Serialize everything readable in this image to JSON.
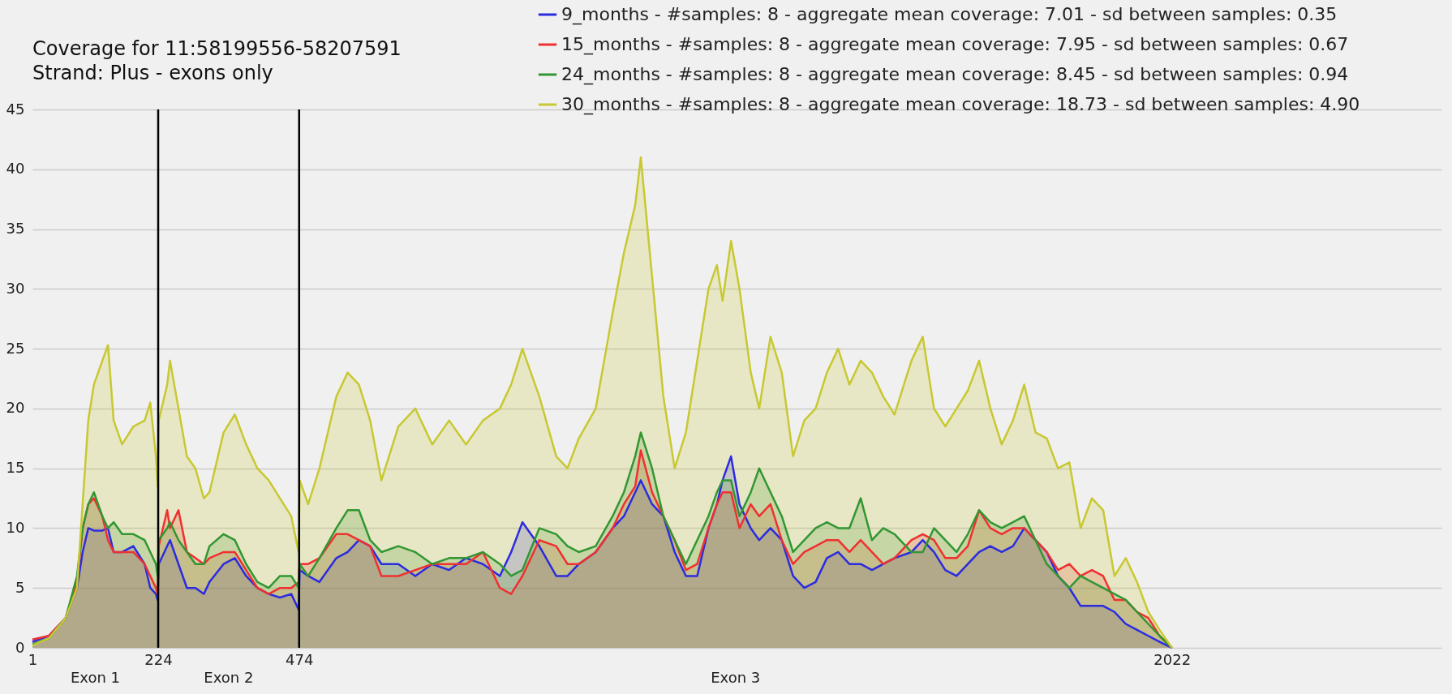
{
  "chart_data": {
    "type": "area",
    "title": "Coverage for 11:58199556-58207591",
    "subtitle": "Strand: Plus - exons only",
    "x": [
      1,
      30,
      60,
      80,
      90,
      100,
      110,
      125,
      135,
      145,
      160,
      180,
      200,
      210,
      220,
      223,
      225,
      240,
      245,
      260,
      275,
      290,
      305,
      315,
      340,
      360,
      380,
      400,
      420,
      440,
      460,
      473,
      475,
      490,
      510,
      540,
      560,
      580,
      600,
      620,
      650,
      680,
      710,
      740,
      770,
      800,
      830,
      850,
      870,
      900,
      930,
      950,
      970,
      1000,
      1030,
      1050,
      1070,
      1080,
      1100,
      1120,
      1140,
      1160,
      1180,
      1200,
      1215,
      1225,
      1240,
      1255,
      1275,
      1290,
      1310,
      1330,
      1350,
      1370,
      1390,
      1410,
      1430,
      1450,
      1470,
      1490,
      1510,
      1530,
      1560,
      1580,
      1600,
      1620,
      1640,
      1660,
      1680,
      1700,
      1720,
      1740,
      1760,
      1780,
      1800,
      1820,
      1840,
      1860,
      1880,
      1900,
      1920,
      1940,
      1960,
      1980,
      2000,
      2022
    ],
    "series": [
      {
        "name": "9_months - #samples: 8 - aggregate mean coverage: 7.01 - sd between samples: 0.35",
        "color": "#2b2be0",
        "values": [
          0.5,
          1,
          2.5,
          5,
          8,
          10,
          9.8,
          9.8,
          10,
          8,
          8,
          8.5,
          7,
          5,
          4.5,
          4,
          7,
          8.5,
          9,
          7,
          5,
          5,
          4.5,
          5.5,
          7,
          7.5,
          6,
          5,
          4.5,
          4.2,
          4.5,
          3.2,
          6.5,
          6,
          5.5,
          7.5,
          8,
          9,
          8.5,
          7,
          7,
          6,
          7,
          6.5,
          7.5,
          7,
          6,
          8,
          10.5,
          8.5,
          6,
          6,
          7,
          8,
          10,
          11,
          13,
          14,
          12,
          11,
          8,
          6,
          6,
          10,
          12,
          14,
          16,
          12,
          10,
          9,
          10,
          9,
          6,
          5,
          5.5,
          7.5,
          8,
          7,
          7,
          6.5,
          7,
          7.5,
          8,
          9,
          8,
          6.5,
          6,
          7,
          8,
          8.5,
          8,
          8.5,
          10,
          9,
          8,
          6,
          5,
          3.5,
          3.5,
          3.5,
          3,
          2,
          1.5,
          1,
          0.5,
          0
        ]
      },
      {
        "name": "15_months - #samples: 8 - aggregate mean coverage: 7.95 - sd between samples: 0.67",
        "color": "#f03030",
        "values": [
          0.7,
          1,
          2.5,
          5.5,
          10,
          12,
          12.5,
          11,
          9,
          8,
          8,
          8,
          7,
          6,
          5,
          4.5,
          8.5,
          11.5,
          10,
          11.5,
          8,
          7.5,
          7,
          7.5,
          8,
          8,
          6.5,
          5,
          4.5,
          5,
          5,
          5.5,
          7,
          7,
          7.5,
          9.5,
          9.5,
          9,
          8.5,
          6,
          6,
          6.5,
          7,
          7,
          7,
          8,
          5,
          4.5,
          6,
          9,
          8.5,
          7,
          7,
          8,
          10,
          12,
          13.5,
          16.5,
          13,
          11,
          9,
          6.5,
          7,
          10,
          12,
          13,
          13,
          10,
          12,
          11,
          12,
          9,
          7,
          8,
          8.5,
          9,
          9,
          8,
          9,
          8,
          7,
          7.5,
          9,
          9.5,
          9,
          7.5,
          7.5,
          8.5,
          11.5,
          10,
          9.5,
          10,
          10,
          9,
          8,
          6.5,
          7,
          6,
          6.5,
          6,
          4,
          4,
          3,
          2.5,
          1,
          0
        ]
      },
      {
        "name": "24_months - #samples: 8 - aggregate mean coverage: 8.45 - sd between samples: 0.94",
        "color": "#329632",
        "values": [
          0.3,
          0.8,
          2.5,
          6,
          10,
          12,
          13,
          11,
          10,
          10.5,
          9.5,
          9.5,
          9,
          8,
          7,
          6,
          9,
          10,
          10.5,
          9,
          8,
          7,
          7,
          8.5,
          9.5,
          9,
          7,
          5.5,
          5,
          6,
          6,
          5,
          7,
          6,
          7.5,
          10,
          11.5,
          11.5,
          9,
          8,
          8.5,
          8,
          7,
          7.5,
          7.5,
          8,
          7,
          6,
          6.5,
          10,
          9.5,
          8.5,
          8,
          8.5,
          11,
          13,
          16,
          18,
          15,
          11,
          9,
          7,
          9,
          11,
          13,
          14,
          14,
          11,
          13,
          15,
          13,
          11,
          8,
          9,
          10,
          10.5,
          10,
          10,
          12.5,
          9,
          10,
          9.5,
          8,
          8,
          10,
          9,
          8,
          9.5,
          11.5,
          10.5,
          10,
          10.5,
          11,
          9,
          7,
          6,
          5,
          6,
          5.5,
          5,
          4.5,
          4,
          3,
          2,
          1,
          0
        ]
      },
      {
        "name": "30_months - #samples: 8 - aggregate mean coverage: 18.73 - sd between samples: 4.90",
        "color": "#c8c832",
        "values": [
          0.2,
          0.8,
          2.5,
          5,
          12,
          19,
          22,
          24,
          25.3,
          19,
          17,
          18.5,
          19,
          20.5,
          16,
          13.5,
          19,
          22,
          24,
          20,
          16,
          15,
          12.5,
          13,
          18,
          19.5,
          17,
          15,
          14,
          12.5,
          11,
          8,
          14,
          12,
          15,
          21,
          23,
          22,
          19,
          14,
          18.5,
          20,
          17,
          19,
          17,
          19,
          20,
          22,
          25,
          21,
          16,
          15,
          17.5,
          20,
          28,
          33,
          37,
          41,
          31,
          21,
          15,
          18,
          24,
          30,
          32,
          29,
          34,
          30,
          23,
          20,
          26,
          23,
          16,
          19,
          20,
          23,
          25,
          22,
          24,
          23,
          21,
          19.5,
          24,
          26,
          20,
          18.5,
          20,
          21.5,
          24,
          20,
          17,
          19,
          22,
          18,
          17.5,
          15,
          15.5,
          10,
          12.5,
          11.5,
          6,
          7.5,
          5.5,
          3,
          1.5,
          0
        ]
      }
    ],
    "xlim": [
      1,
      2500
    ],
    "xticks": [
      1,
      224,
      474,
      2022
    ],
    "ylim": [
      0,
      45
    ],
    "yticks": [
      0,
      5,
      10,
      15,
      20,
      25,
      30,
      35,
      40,
      45
    ],
    "grid": "y",
    "legend": "top right",
    "ref_lines": [
      {
        "axis": "x",
        "value": 224,
        "color": "#000000"
      },
      {
        "axis": "x",
        "value": 474,
        "color": "#000000"
      }
    ],
    "annotations": [
      "Exon 1",
      "Exon 2",
      "Exon 3"
    ]
  }
}
